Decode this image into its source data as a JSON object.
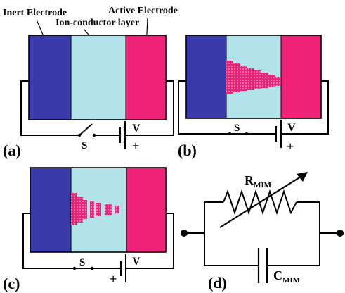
{
  "labels": {
    "inert_electrode": "Inert Electrode",
    "active_electrode": "Active Electrode",
    "ion_conductor": "Ion-conductor layer"
  },
  "panels": {
    "a": {
      "tag": "(a)",
      "switch": "S",
      "voltage": "V",
      "plus": "+"
    },
    "b": {
      "tag": "(b)",
      "switch": "S",
      "voltage": "V",
      "plus": "+"
    },
    "c": {
      "tag": "(c)",
      "switch": "S",
      "voltage": "V",
      "plus": "+"
    },
    "d": {
      "tag": "(d)",
      "resistor_main": "R",
      "resistor_sub": "MIM",
      "capacitor_main": "C",
      "capacitor_sub": "MIM"
    }
  },
  "colors": {
    "inert": "#3a3aaa",
    "ion": "#b3e3ea",
    "active": "#ee2277",
    "filament": "#ee2277"
  }
}
